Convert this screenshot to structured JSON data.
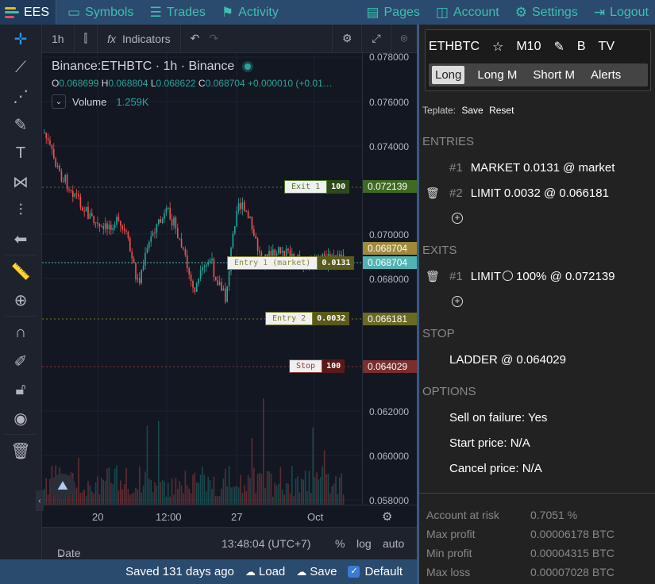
{
  "app": {
    "brand": "EES",
    "nav_left": [
      {
        "icon": "symbols-icon",
        "label": "Symbols"
      },
      {
        "icon": "trades-icon",
        "label": "Trades"
      },
      {
        "icon": "activity-icon",
        "label": "Activity"
      }
    ],
    "nav_right": [
      {
        "icon": "pages-icon",
        "label": "Pages"
      },
      {
        "icon": "account-icon",
        "label": "Account"
      },
      {
        "icon": "settings-icon",
        "label": "Settings"
      },
      {
        "icon": "logout-icon",
        "label": "Logout"
      }
    ]
  },
  "chart_toolbar": {
    "interval": "1h",
    "indicators_label": "Indicators"
  },
  "chart": {
    "symbol_title": "Binance:ETHBTC · 1h · Binance",
    "ohlc": {
      "o_key": "O",
      "o": "0.068699",
      "h_key": "H",
      "h": "0.068804",
      "l_key": "L",
      "l": "0.068622",
      "c_key": "C",
      "c": "0.068704",
      "change": "+0.000010 (+0.01…"
    },
    "volume_label": "Volume",
    "volume_value": "1.259K",
    "price_labels": [
      "0.078000",
      "0.076000",
      "0.074000",
      "0.070000",
      "0.068000",
      "0.062000",
      "0.060000",
      "0.058000"
    ],
    "price_tags": [
      {
        "value": "0.072139",
        "color": "#4a7a2a"
      },
      {
        "value": "0.068704",
        "color": "#a08a3a"
      },
      {
        "value": "0.068704",
        "color": "#4fb3b3"
      },
      {
        "value": "0.066181",
        "color": "#7a7a2a"
      },
      {
        "value": "0.064029",
        "color": "#8a3a3a"
      }
    ],
    "orders": [
      {
        "label": "Exit 1",
        "qty": "100",
        "color": "#4a7a2a"
      },
      {
        "label": "Entry 1 (market)",
        "qty": "0.0131",
        "color": "#8a8a3a"
      },
      {
        "label": "Entry 2",
        "qty": "0.0032",
        "color": "#7a7a2a"
      },
      {
        "label": "Stop",
        "qty": "100",
        "color": "#8a3a3a"
      }
    ],
    "time_labels": [
      "20",
      "12:00",
      "27",
      "Oct"
    ]
  },
  "chart_bottom": {
    "date_range": "Date Range",
    "clock": "13:48:04 (UTC+7)",
    "pct": "%",
    "log": "log",
    "auto": "auto"
  },
  "status_bar": {
    "saved": "Saved 131 days ago",
    "load": "Load",
    "save": "Save",
    "default": "Default"
  },
  "panel": {
    "symbol": "ETHBTC",
    "m10": "M10",
    "b": "B",
    "tv": "TV",
    "tabs": [
      "Long",
      "Long M",
      "Short M",
      "Alerts"
    ],
    "template_label": "Teplate:",
    "template_save": "Save",
    "template_reset": "Reset",
    "entries_title": "ENTRIES",
    "entries": [
      {
        "num": "#1",
        "text": "MARKET 0.0131 @ market"
      },
      {
        "num": "#2",
        "text": "LIMIT 0.0032 @ 0.066181"
      }
    ],
    "exits_title": "EXITS",
    "exit_num": "#1",
    "exit_type": "LIMIT",
    "exit_rest": "100% @ 0.072139",
    "stop_title": "STOP",
    "stop_text": "LADDER @ 0.064029",
    "options_title": "OPTIONS",
    "options": [
      "Sell on failure: Yes",
      "Start price: N/A",
      "Cancel price: N/A"
    ],
    "stats": [
      {
        "label": "Account at risk",
        "value": "0.7051 %"
      },
      {
        "label": "Max profit",
        "value": "0.00006178 BTC"
      },
      {
        "label": "Min profit",
        "value": "0.00004315 BTC"
      },
      {
        "label": "Max loss",
        "value": "0.00007028 BTC"
      }
    ]
  }
}
